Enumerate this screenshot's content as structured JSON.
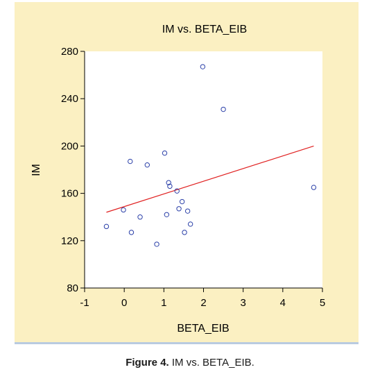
{
  "caption": {
    "label": "Figure 4.",
    "text": "IM vs. BETA_EIB."
  },
  "colors": {
    "panel_background": "#fbf0c2",
    "plot_background": "#ffffff",
    "points": "#2a3fa8",
    "regression_line": "#e02020",
    "axes": "#000000"
  },
  "chart_data": {
    "type": "scatter",
    "title": "IM vs. BETA_EIB",
    "xlabel": "BETA_EIB",
    "ylabel": "IM",
    "xlim": [
      -1,
      5
    ],
    "ylim": [
      80,
      280
    ],
    "xticks": [
      -1,
      0,
      1,
      2,
      3,
      4,
      5
    ],
    "yticks": [
      80,
      120,
      160,
      200,
      240,
      280
    ],
    "grid": false,
    "marker": "hollow-circle",
    "points": [
      {
        "x": -0.45,
        "y": 132
      },
      {
        "x": -0.02,
        "y": 146
      },
      {
        "x": 0.15,
        "y": 187
      },
      {
        "x": 0.18,
        "y": 127
      },
      {
        "x": 0.4,
        "y": 140
      },
      {
        "x": 0.58,
        "y": 184
      },
      {
        "x": 0.82,
        "y": 117
      },
      {
        "x": 1.02,
        "y": 194
      },
      {
        "x": 1.07,
        "y": 142
      },
      {
        "x": 1.12,
        "y": 169
      },
      {
        "x": 1.15,
        "y": 166
      },
      {
        "x": 1.33,
        "y": 162
      },
      {
        "x": 1.38,
        "y": 147
      },
      {
        "x": 1.46,
        "y": 153
      },
      {
        "x": 1.52,
        "y": 127
      },
      {
        "x": 1.6,
        "y": 145
      },
      {
        "x": 1.67,
        "y": 134
      },
      {
        "x": 1.98,
        "y": 267
      },
      {
        "x": 2.5,
        "y": 231
      },
      {
        "x": 4.78,
        "y": 165
      }
    ],
    "fit_line": {
      "x": [
        -0.45,
        4.78
      ],
      "y": [
        144,
        200
      ]
    }
  }
}
